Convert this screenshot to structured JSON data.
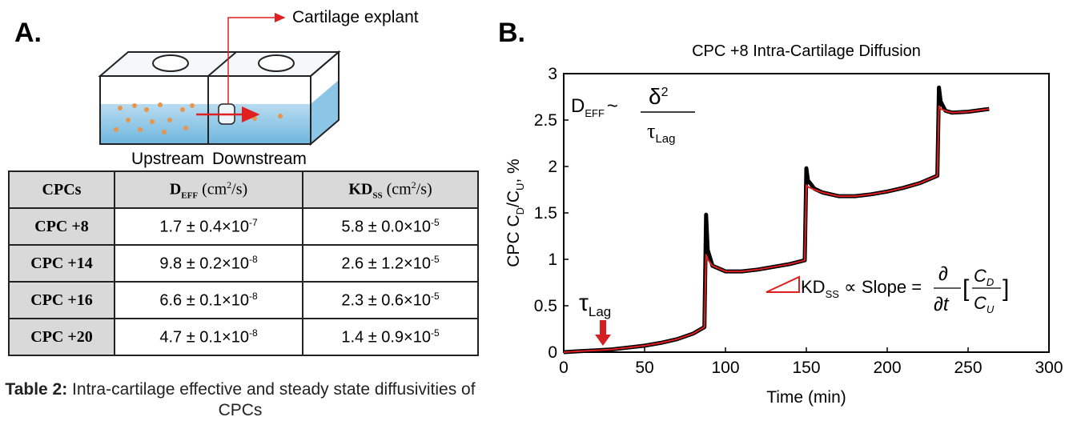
{
  "panel_a": {
    "label": "A.",
    "diagram": {
      "top_label": "Cartilage explant",
      "upstream": "Upstream",
      "downstream": "Downstream"
    },
    "table": {
      "header": [
        "CPCs",
        {
          "symbol": "D",
          "sub": "EFF",
          "unit": " (cm",
          "unit_sup": "2",
          "unit_end": "/s)"
        },
        {
          "symbol": "KD",
          "sub": "SS",
          "unit": " (cm",
          "unit_sup": "2",
          "unit_end": "/s)"
        }
      ],
      "rows": [
        [
          "CPC +8",
          {
            "base": "1.7 ± 0.4×10",
            "exp": "-7"
          },
          {
            "base": "5.8 ± 0.0×10",
            "exp": "-5"
          }
        ],
        [
          "CPC +14",
          {
            "base": "9.8 ± 0.2×10",
            "exp": "-8"
          },
          {
            "base": "2.6 ± 1.2×10",
            "exp": "-5"
          }
        ],
        [
          "CPC +16",
          {
            "base": "6.6 ± 0.1×10",
            "exp": "-8"
          },
          {
            "base": "2.3 ± 0.6×10",
            "exp": "-5"
          }
        ],
        [
          "CPC +20",
          {
            "base": "4.7 ± 0.1×10",
            "exp": "-8"
          },
          {
            "base": "1.4 ± 0.9×10",
            "exp": "-5"
          }
        ]
      ]
    },
    "caption": {
      "bold": "Table 2:",
      "text": " Intra-cartilage effective and steady state diffusivities of CPCs"
    }
  },
  "panel_b_label": "B.",
  "chart_data": {
    "type": "line",
    "title": "CPC +8 Intra-Cartilage Diffusion",
    "xlabel": "Time (min)",
    "ylabel": {
      "a": "CPC C",
      "sub1": "D",
      "b": "/C",
      "sub2": "U",
      "c": ", %"
    },
    "x": [
      0,
      10,
      20,
      30,
      40,
      50,
      60,
      70,
      80,
      87,
      88,
      89,
      92,
      100,
      110,
      120,
      130,
      140,
      149,
      150,
      151,
      155,
      160,
      170,
      180,
      190,
      200,
      210,
      220,
      231,
      232,
      233,
      236,
      240,
      250,
      263
    ],
    "series": [
      {
        "color": "#000000",
        "values": [
          0,
          0.01,
          0.02,
          0.03,
          0.05,
          0.07,
          0.1,
          0.14,
          0.2,
          0.27,
          1.48,
          1.1,
          0.93,
          0.87,
          0.87,
          0.89,
          0.92,
          0.95,
          0.99,
          1.98,
          1.85,
          1.76,
          1.72,
          1.68,
          1.68,
          1.7,
          1.73,
          1.77,
          1.82,
          1.9,
          2.85,
          2.7,
          2.6,
          2.58,
          2.59,
          2.62
        ]
      },
      {
        "color": "#e02020",
        "values": [
          0,
          0.01,
          0.02,
          0.03,
          0.05,
          0.07,
          0.1,
          0.14,
          0.2,
          0.27,
          1.05,
          1.0,
          0.93,
          0.87,
          0.87,
          0.89,
          0.92,
          0.95,
          0.99,
          1.8,
          1.78,
          1.75,
          1.72,
          1.68,
          1.68,
          1.7,
          1.73,
          1.77,
          1.82,
          1.9,
          2.65,
          2.62,
          2.6,
          2.58,
          2.59,
          2.62
        ]
      }
    ],
    "xlim": [
      0,
      300
    ],
    "ylim": [
      0,
      3
    ],
    "xticks": [
      0,
      50,
      100,
      150,
      200,
      250,
      300
    ],
    "yticks": [
      0,
      0.5,
      1,
      1.5,
      2,
      2.5,
      3
    ],
    "annotations": {
      "deff": {
        "d": "D",
        "sub": "EFF",
        "tilde": "~",
        "num": "δ",
        "num_sup": "2",
        "den": "τ",
        "den_sub": "Lag"
      },
      "tau_lag": {
        "tau": "τ",
        "sub": "Lag"
      },
      "kd": {
        "kd": "KD",
        "sub": "SS",
        "rel": " ∝ Slope =",
        "partial": "∂",
        "partial_t": "∂t",
        "open": "[",
        "c_num": "C",
        "c_num_sub": "D",
        "c_den": "C",
        "c_den_sub": "U",
        "close": "]"
      }
    }
  }
}
